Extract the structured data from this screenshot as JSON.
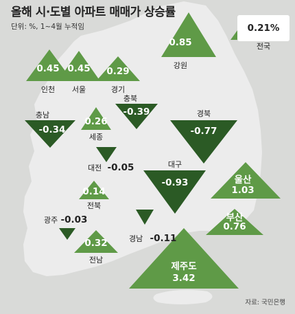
{
  "title": "올해 시·도별 아파트 매매가 상승률",
  "unit": "단위: %, 1~4월 누적임",
  "source": "자료: 국민은행",
  "colors": {
    "increase": "#5f9a47",
    "decrease": "#2b5a25",
    "land": "#ececec",
    "sea": "#d9dad8"
  },
  "regions": [
    {
      "name": "전국",
      "value": "0.21%",
      "direction": "up"
    },
    {
      "name": "강원",
      "value": "0.85",
      "direction": "up"
    },
    {
      "name": "인천",
      "value": "0.45",
      "direction": "up"
    },
    {
      "name": "서울",
      "value": "0.45",
      "direction": "up"
    },
    {
      "name": "경기",
      "value": "0.29",
      "direction": "up"
    },
    {
      "name": "충남",
      "value": "-0.34",
      "direction": "down"
    },
    {
      "name": "세종",
      "value": "0.26",
      "direction": "up"
    },
    {
      "name": "충북",
      "value": "-0.39",
      "direction": "down"
    },
    {
      "name": "경북",
      "value": "-0.77",
      "direction": "down"
    },
    {
      "name": "대전",
      "value": "-0.05",
      "direction": "down"
    },
    {
      "name": "대구",
      "value": "-0.93",
      "direction": "down"
    },
    {
      "name": "울산",
      "value": "1.03",
      "direction": "up"
    },
    {
      "name": "전북",
      "value": "0.14",
      "direction": "up"
    },
    {
      "name": "부산",
      "value": "0.76",
      "direction": "up"
    },
    {
      "name": "광주",
      "value": "-0.03",
      "direction": "down"
    },
    {
      "name": "경남",
      "value": "-0.11",
      "direction": "down"
    },
    {
      "name": "전남",
      "value": "0.32",
      "direction": "up"
    },
    {
      "name": "제주도",
      "value": "3.42",
      "direction": "up"
    }
  ]
}
